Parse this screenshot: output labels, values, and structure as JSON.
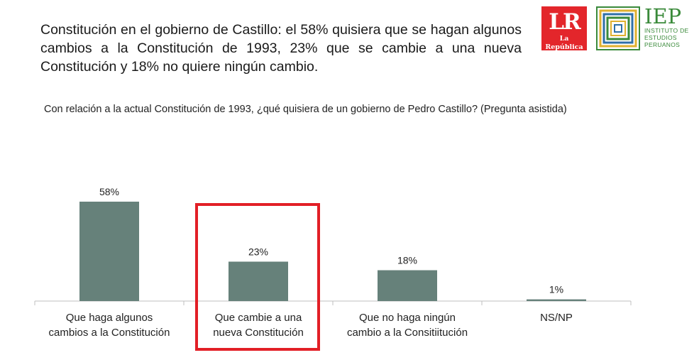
{
  "headline": "Constitución en el gobierno de Castillo: el 58% quisiera que se hagan algunos cambios a la Constitución de 1993, 23% que se cambie a una nueva Constitución y 18% no quiere ningún cambio.",
  "question": "Con relación a la actual Constitución de 1993, ¿qué quisiera de un gobierno de Pedro Castillo? (Pregunta asistida)",
  "logos": {
    "lr_big": "LR",
    "lr_small": "La República",
    "iep_big": "IEP",
    "iep_sub": [
      "INSTITUTO DE",
      "ESTUDIOS",
      "PERUANOS"
    ]
  },
  "colors": {
    "bar": "#66817a",
    "highlight": "#e21f26",
    "lr": "#e3262b",
    "iep": "#3a8a3a"
  },
  "chart_data": {
    "type": "bar",
    "categories": [
      [
        "Que haga algunos",
        "cambios a la Constitución"
      ],
      [
        "Que cambie a una",
        "nueva Constitución"
      ],
      [
        "Que no haga ningún",
        "cambio a la Consitiitución"
      ],
      [
        "NS/NP"
      ]
    ],
    "values": [
      58,
      23,
      18,
      1
    ],
    "data_labels": [
      "58%",
      "23%",
      "18%",
      "1%"
    ],
    "highlighted_index": 1,
    "ylim": [
      0,
      58
    ]
  }
}
